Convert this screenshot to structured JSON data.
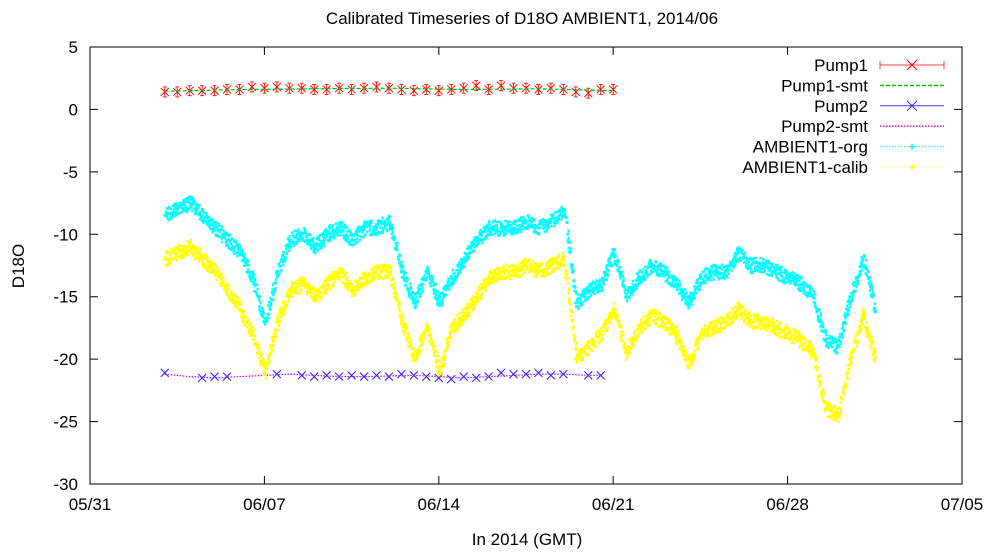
{
  "chart_data": {
    "type": "line",
    "title": "Calibrated Timeseries of D18O AMBIENT1, 2014/06",
    "xlabel": "In 2014 (GMT)",
    "ylabel": "D18O",
    "x_range": [
      "2014-05-31",
      "2014-07-05"
    ],
    "ylim": [
      -30,
      5
    ],
    "x_ticks": [
      {
        "date": "2014-05-31",
        "label": "05/31"
      },
      {
        "date": "2014-06-07",
        "label": "06/07"
      },
      {
        "date": "2014-06-14",
        "label": "06/14"
      },
      {
        "date": "2014-06-21",
        "label": "06/21"
      },
      {
        "date": "2014-06-28",
        "label": "06/28"
      },
      {
        "date": "2014-07-05",
        "label": "07/05"
      }
    ],
    "y_ticks": [
      5,
      0,
      -5,
      -10,
      -15,
      -20,
      -25,
      -30
    ],
    "grid": false,
    "legend_position": "top-right",
    "series": [
      {
        "name": "Pump1",
        "style": "points",
        "marker": "x",
        "color": "#ff0000",
        "error_bars": true,
        "x": [
          "2014-06-03T00:00",
          "2014-06-03T12:00",
          "2014-06-04T00:00",
          "2014-06-04T12:00",
          "2014-06-05T00:00",
          "2014-06-05T12:00",
          "2014-06-06T00:00",
          "2014-06-06T12:00",
          "2014-06-07T00:00",
          "2014-06-07T12:00",
          "2014-06-08T00:00",
          "2014-06-08T12:00",
          "2014-06-09T00:00",
          "2014-06-09T12:00",
          "2014-06-10T00:00",
          "2014-06-10T12:00",
          "2014-06-11T00:00",
          "2014-06-11T12:00",
          "2014-06-12T00:00",
          "2014-06-12T12:00",
          "2014-06-13T00:00",
          "2014-06-13T12:00",
          "2014-06-14T00:00",
          "2014-06-14T12:00",
          "2014-06-15T00:00",
          "2014-06-15T12:00",
          "2014-06-16T00:00",
          "2014-06-16T12:00",
          "2014-06-17T00:00",
          "2014-06-17T12:00",
          "2014-06-18T00:00",
          "2014-06-18T12:00",
          "2014-06-19T00:00",
          "2014-06-19T12:00",
          "2014-06-20T00:00",
          "2014-06-20T12:00",
          "2014-06-21T00:00"
        ],
        "y": [
          1.4,
          1.4,
          1.5,
          1.5,
          1.5,
          1.6,
          1.6,
          1.8,
          1.7,
          1.8,
          1.7,
          1.7,
          1.6,
          1.6,
          1.7,
          1.6,
          1.7,
          1.8,
          1.7,
          1.6,
          1.5,
          1.6,
          1.5,
          1.6,
          1.7,
          1.9,
          1.6,
          1.9,
          1.7,
          1.7,
          1.6,
          1.7,
          1.6,
          1.4,
          1.3,
          1.6,
          1.6
        ]
      },
      {
        "name": "Pump1-smt",
        "style": "dashed-line",
        "color": "#00c000",
        "x": [
          "2014-06-03T00:00",
          "2014-06-06T00:00",
          "2014-06-09T00:00",
          "2014-06-12T00:00",
          "2014-06-15T00:00",
          "2014-06-18T00:00",
          "2014-06-21T00:00"
        ],
        "y": [
          1.45,
          1.6,
          1.65,
          1.7,
          1.6,
          1.65,
          1.5
        ]
      },
      {
        "name": "Pump2",
        "style": "points",
        "marker": "x",
        "color": "#2020ff",
        "x": [
          "2014-06-03T00:00",
          "2014-06-04T12:00",
          "2014-06-05T00:00",
          "2014-06-05T12:00",
          "2014-06-07T12:00",
          "2014-06-08T12:00",
          "2014-06-09T00:00",
          "2014-06-09T12:00",
          "2014-06-10T00:00",
          "2014-06-10T12:00",
          "2014-06-11T00:00",
          "2014-06-11T12:00",
          "2014-06-12T00:00",
          "2014-06-12T12:00",
          "2014-06-13T00:00",
          "2014-06-13T12:00",
          "2014-06-14T00:00",
          "2014-06-14T12:00",
          "2014-06-15T00:00",
          "2014-06-15T12:00",
          "2014-06-16T00:00",
          "2014-06-16T12:00",
          "2014-06-17T00:00",
          "2014-06-17T12:00",
          "2014-06-18T00:00",
          "2014-06-18T12:00",
          "2014-06-19T00:00",
          "2014-06-20T00:00",
          "2014-06-20T12:00"
        ],
        "y": [
          -21.1,
          -21.5,
          -21.4,
          -21.4,
          -21.2,
          -21.3,
          -21.4,
          -21.3,
          -21.4,
          -21.3,
          -21.4,
          -21.3,
          -21.4,
          -21.2,
          -21.3,
          -21.4,
          -21.5,
          -21.6,
          -21.4,
          -21.5,
          -21.4,
          -21.1,
          -21.2,
          -21.2,
          -21.1,
          -21.3,
          -21.2,
          -21.3,
          -21.3
        ]
      },
      {
        "name": "Pump2-smt",
        "style": "dotted-line",
        "color": "#e000e0",
        "x": [
          "2014-06-03T00:00",
          "2014-06-04T00:00",
          "2014-06-05T00:00",
          "2014-06-06T00:00",
          "2014-06-07T00:00",
          "2014-06-08T00:00",
          "2014-06-09T00:00",
          "2014-06-10T00:00",
          "2014-06-11T00:00",
          "2014-06-12T00:00",
          "2014-06-13T00:00",
          "2014-06-14T00:00",
          "2014-06-15T00:00",
          "2014-06-16T00:00",
          "2014-06-17T00:00",
          "2014-06-18T00:00",
          "2014-06-19T00:00",
          "2014-06-20T00:00",
          "2014-06-20T12:00"
        ],
        "y": [
          -21.2,
          -21.4,
          -21.5,
          -21.4,
          -21.3,
          -21.2,
          -21.3,
          -21.4,
          -21.4,
          -21.35,
          -21.3,
          -21.4,
          -21.5,
          -21.4,
          -21.3,
          -21.2,
          -21.2,
          -21.3,
          -21.3
        ]
      },
      {
        "name": "AMBIENT1-org",
        "style": "dense-points",
        "color": "#00ffff",
        "x": [
          "2014-06-03T00:00",
          "2014-06-03T12:00",
          "2014-06-04T00:00",
          "2014-06-04T12:00",
          "2014-06-05T00:00",
          "2014-06-05T12:00",
          "2014-06-06T00:00",
          "2014-06-06T12:00",
          "2014-06-07T00:00",
          "2014-06-07T12:00",
          "2014-06-08T00:00",
          "2014-06-08T12:00",
          "2014-06-09T00:00",
          "2014-06-09T12:00",
          "2014-06-10T00:00",
          "2014-06-10T12:00",
          "2014-06-11T00:00",
          "2014-06-11T12:00",
          "2014-06-12T00:00",
          "2014-06-12T12:00",
          "2014-06-13T00:00",
          "2014-06-13T12:00",
          "2014-06-14T00:00",
          "2014-06-14T12:00",
          "2014-06-15T00:00",
          "2014-06-15T12:00",
          "2014-06-16T00:00",
          "2014-06-16T12:00",
          "2014-06-17T00:00",
          "2014-06-17T12:00",
          "2014-06-18T00:00",
          "2014-06-18T12:00",
          "2014-06-19T00:00",
          "2014-06-19T12:00",
          "2014-06-20T00:00",
          "2014-06-20T12:00",
          "2014-06-21T00:00",
          "2014-06-21T12:00",
          "2014-06-22T00:00",
          "2014-06-22T12:00",
          "2014-06-23T00:00",
          "2014-06-23T12:00",
          "2014-06-24T00:00",
          "2014-06-24T12:00",
          "2014-06-25T00:00",
          "2014-06-25T12:00",
          "2014-06-26T00:00",
          "2014-06-26T12:00",
          "2014-06-27T00:00",
          "2014-06-27T12:00",
          "2014-06-28T00:00",
          "2014-06-28T12:00",
          "2014-06-29T00:00",
          "2014-06-29T12:00",
          "2014-06-30T00:00",
          "2014-06-30T12:00",
          "2014-07-01T00:00",
          "2014-07-01T12:00"
        ],
        "y": [
          -8.5,
          -8.0,
          -7.5,
          -8.5,
          -9.5,
          -10.5,
          -11.5,
          -13.5,
          -17.0,
          -13.0,
          -10.5,
          -10.0,
          -11.0,
          -10.0,
          -9.5,
          -10.5,
          -9.5,
          -9.5,
          -9.0,
          -13.0,
          -15.5,
          -13.0,
          -15.5,
          -13.5,
          -12.0,
          -10.5,
          -9.5,
          -9.5,
          -9.5,
          -9.0,
          -9.5,
          -9.0,
          -8.0,
          -15.5,
          -14.5,
          -14.0,
          -11.5,
          -15.0,
          -13.5,
          -12.5,
          -13.0,
          -14.0,
          -15.5,
          -13.5,
          -13.0,
          -13.0,
          -11.5,
          -12.5,
          -12.5,
          -13.0,
          -13.5,
          -14.0,
          -15.0,
          -18.5,
          -19.0,
          -15.0,
          -12.0,
          -16.0
        ]
      },
      {
        "name": "AMBIENT1-calib",
        "style": "dense-points",
        "color": "#ffff00",
        "x": [
          "2014-06-03T00:00",
          "2014-06-03T12:00",
          "2014-06-04T00:00",
          "2014-06-04T12:00",
          "2014-06-05T00:00",
          "2014-06-05T12:00",
          "2014-06-06T00:00",
          "2014-06-06T12:00",
          "2014-06-07T00:00",
          "2014-06-07T12:00",
          "2014-06-08T00:00",
          "2014-06-08T12:00",
          "2014-06-09T00:00",
          "2014-06-09T12:00",
          "2014-06-10T00:00",
          "2014-06-10T12:00",
          "2014-06-11T00:00",
          "2014-06-11T12:00",
          "2014-06-12T00:00",
          "2014-06-12T12:00",
          "2014-06-13T00:00",
          "2014-06-13T12:00",
          "2014-06-14T00:00",
          "2014-06-14T12:00",
          "2014-06-15T00:00",
          "2014-06-15T12:00",
          "2014-06-16T00:00",
          "2014-06-16T12:00",
          "2014-06-17T00:00",
          "2014-06-17T12:00",
          "2014-06-18T00:00",
          "2014-06-18T12:00",
          "2014-06-19T00:00",
          "2014-06-19T12:00",
          "2014-06-20T00:00",
          "2014-06-20T12:00",
          "2014-06-21T00:00",
          "2014-06-21T12:00",
          "2014-06-22T00:00",
          "2014-06-22T12:00",
          "2014-06-23T00:00",
          "2014-06-23T12:00",
          "2014-06-24T00:00",
          "2014-06-24T12:00",
          "2014-06-25T00:00",
          "2014-06-25T12:00",
          "2014-06-26T00:00",
          "2014-06-26T12:00",
          "2014-06-27T00:00",
          "2014-06-27T12:00",
          "2014-06-28T00:00",
          "2014-06-28T12:00",
          "2014-06-29T00:00",
          "2014-06-29T12:00",
          "2014-06-30T00:00",
          "2014-06-30T12:00",
          "2014-07-01T00:00",
          "2014-07-01T12:00"
        ],
        "y": [
          -12.0,
          -11.5,
          -11.0,
          -12.0,
          -13.0,
          -14.5,
          -16.0,
          -18.0,
          -21.0,
          -17.0,
          -14.5,
          -14.0,
          -15.0,
          -14.0,
          -13.0,
          -14.5,
          -13.5,
          -13.0,
          -13.0,
          -17.0,
          -20.0,
          -17.5,
          -21.0,
          -17.5,
          -16.5,
          -15.0,
          -13.5,
          -13.0,
          -13.0,
          -12.5,
          -13.0,
          -12.5,
          -12.0,
          -20.0,
          -19.0,
          -18.0,
          -16.0,
          -19.5,
          -17.5,
          -16.5,
          -17.0,
          -18.0,
          -20.5,
          -18.0,
          -17.5,
          -17.0,
          -16.0,
          -17.0,
          -17.0,
          -17.5,
          -18.0,
          -18.5,
          -19.5,
          -24.0,
          -24.5,
          -20.0,
          -16.5,
          -20.0
        ]
      }
    ]
  }
}
